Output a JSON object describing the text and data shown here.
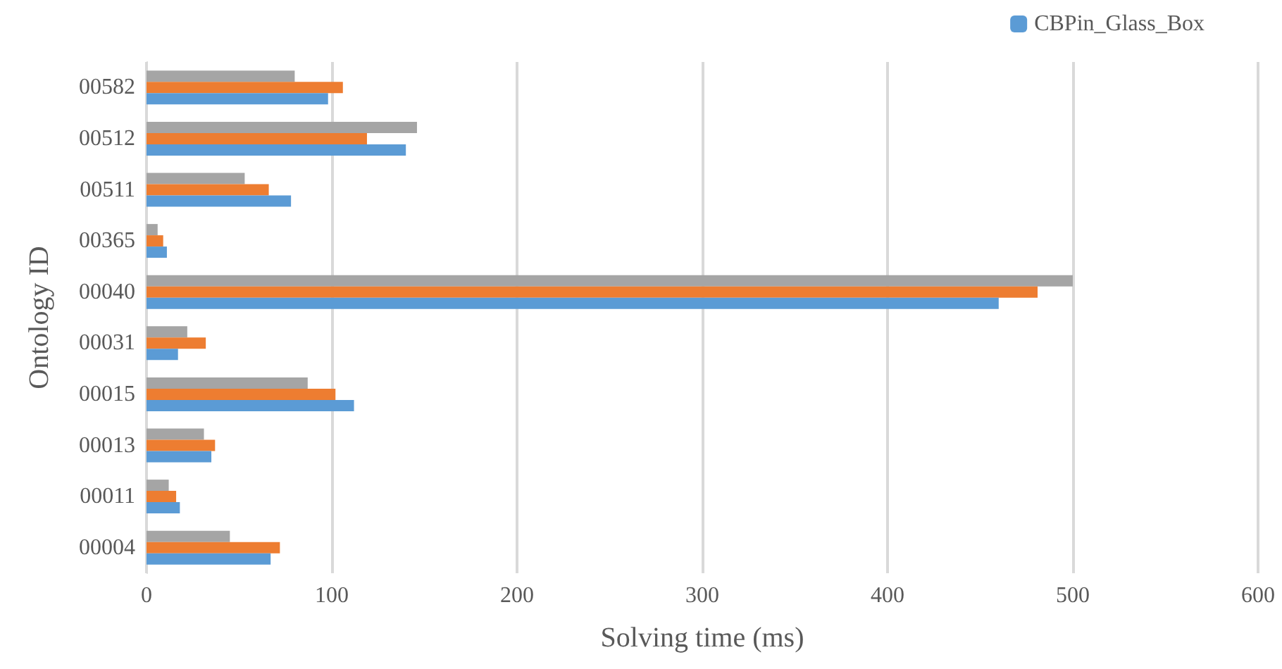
{
  "chart_data": {
    "type": "bar",
    "orientation": "horizontal",
    "xlabel": "Solving time (ms)",
    "ylabel": "Ontology ID",
    "categories": [
      "00582",
      "00512",
      "00511",
      "00365",
      "00040",
      "00031",
      "00015",
      "00013",
      "00011",
      "00004"
    ],
    "series": [
      {
        "color": "#a5a5a5",
        "values": [
          80,
          146,
          53,
          6,
          500,
          22,
          87,
          31,
          12,
          45
        ]
      },
      {
        "color": "#ed7d31",
        "values": [
          106,
          119,
          66,
          9,
          481,
          32,
          102,
          37,
          16,
          72
        ]
      },
      {
        "name": "CBPin_Glass_Box",
        "color": "#5b9bd5",
        "values": [
          98,
          140,
          78,
          11,
          460,
          17,
          112,
          35,
          18,
          67
        ]
      }
    ],
    "xlim": [
      0,
      600
    ],
    "xticks": [
      0,
      100,
      200,
      300,
      400,
      500,
      600
    ],
    "grid": "x",
    "legend": "top right"
  }
}
